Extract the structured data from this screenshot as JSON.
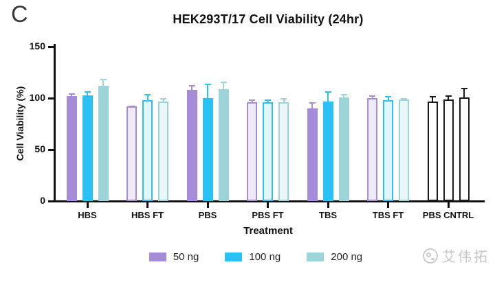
{
  "figure": {
    "panel_label": "C"
  },
  "chart_data": {
    "type": "bar",
    "title": "HEK293T/17 Cell Viability (24hr)",
    "xlabel": "Treatment",
    "ylabel": "Cell Viability (%)",
    "ylim": [
      0,
      150
    ],
    "yticks": [
      0,
      50,
      100,
      150
    ],
    "grid": false,
    "legend_position": "bottom",
    "categories": [
      "HBS",
      "HBS FT",
      "PBS",
      "PBS FT",
      "TBS",
      "TBS FT",
      "PBS CNTRL"
    ],
    "group_styles": [
      "solid",
      "outline",
      "solid",
      "outline",
      "solid",
      "outline",
      "control"
    ],
    "series": [
      {
        "name": "50 ng",
        "color": "#a58bd8",
        "light_fill": "#efeaf8",
        "values": [
          102,
          92,
          108,
          96,
          90,
          100,
          97
        ],
        "errors": [
          3,
          1,
          5,
          3,
          6,
          3,
          5
        ]
      },
      {
        "name": "100 ng",
        "color": "#29c1f6",
        "light_fill": "#e4f6fd",
        "values": [
          103,
          98,
          100,
          96,
          97,
          98,
          99
        ],
        "errors": [
          4,
          6,
          14,
          3,
          10,
          4,
          4
        ]
      },
      {
        "name": "200 ng",
        "color": "#9cd4da",
        "light_fill": "#ebf6f7",
        "values": [
          112,
          97,
          109,
          96,
          101,
          99,
          101
        ],
        "errors": [
          7,
          3,
          7,
          4,
          3,
          1,
          9
        ]
      }
    ],
    "control_border_color": "#1a1a1a",
    "control_fill": "#fcfcfc",
    "axis_color": "#111111"
  },
  "watermark": {
    "text": "艾伟拓"
  }
}
